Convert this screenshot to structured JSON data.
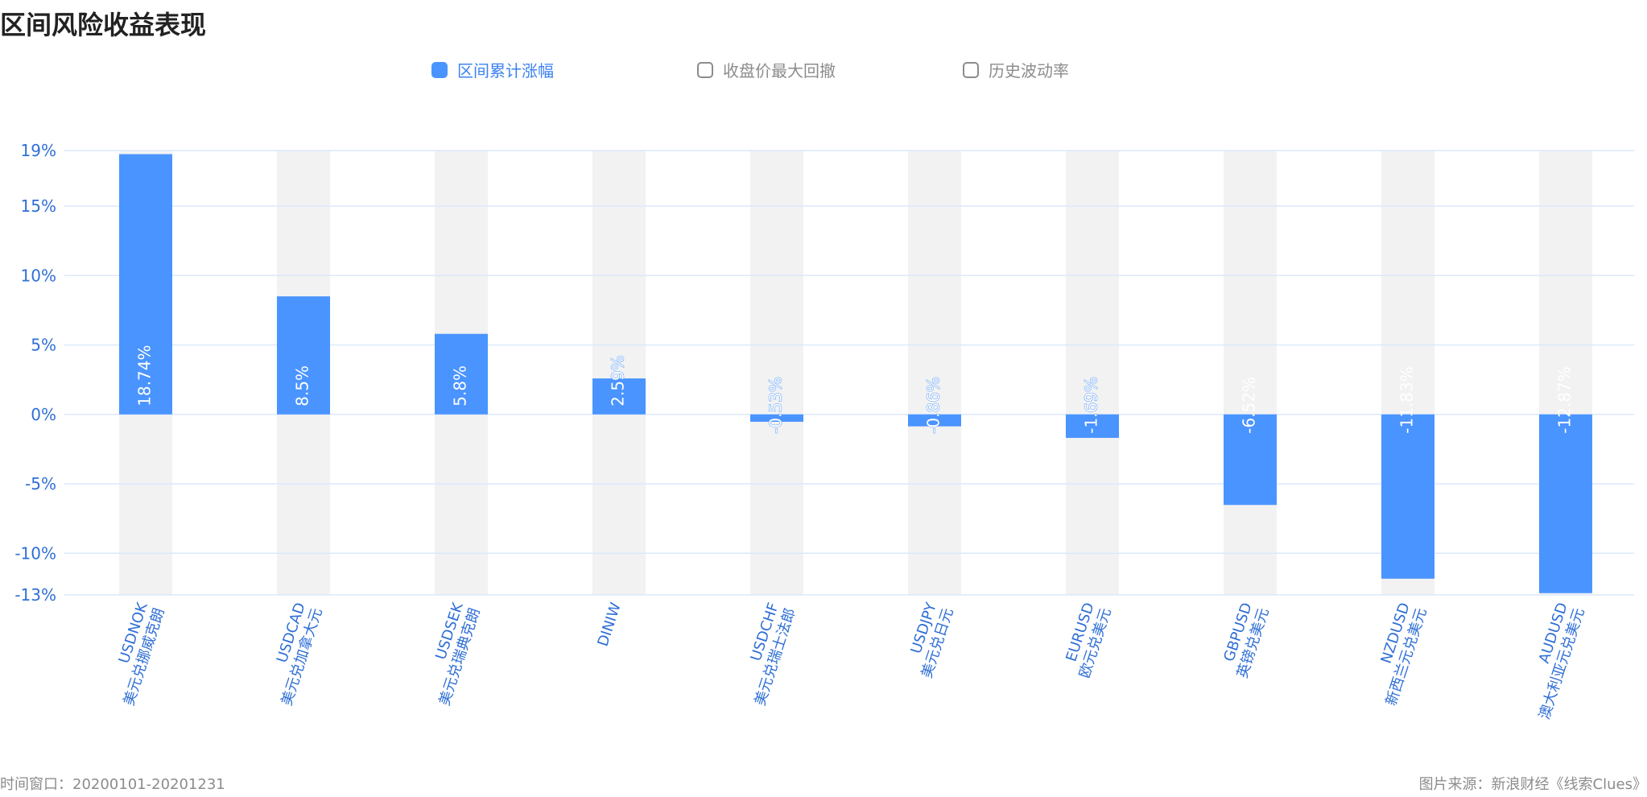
{
  "title": "区间风险收益表现",
  "legend": [
    {
      "label": "区间累计涨幅",
      "active": true
    },
    {
      "label": "收盘价最大回撤",
      "active": false
    },
    {
      "label": "历史波动率",
      "active": false
    }
  ],
  "footer": {
    "left": "时间窗口：20200101-20201231",
    "right": "图片来源：新浪财经《线索Clues》"
  },
  "colors": {
    "bar": "#4a94ff",
    "band": "#f2f2f2",
    "grid": "#dbe9fb",
    "axis_text": "#2f6fd6",
    "label_inside": "#ffffff"
  },
  "chart_data": {
    "type": "bar",
    "title": "区间风险收益表现",
    "series": [
      {
        "name": "区间累计涨幅",
        "values": [
          18.74,
          8.5,
          5.8,
          2.59,
          -0.53,
          -0.86,
          -1.69,
          -6.52,
          -11.83,
          -12.87
        ]
      }
    ],
    "categories": [
      {
        "code": "USDNOK",
        "name": "美元兑挪威克朗"
      },
      {
        "code": "USDCAD",
        "name": "美元兑加拿大元"
      },
      {
        "code": "USDSEK",
        "name": "美元兑瑞典克朗"
      },
      {
        "code": "DINIW",
        "name": ""
      },
      {
        "code": "USDCHF",
        "name": "美元兑瑞士法郎"
      },
      {
        "code": "USDJPY",
        "name": "美元兑日元"
      },
      {
        "code": "EURUSD",
        "name": "欧元兑美元"
      },
      {
        "code": "GBPUSD",
        "name": "英镑兑美元"
      },
      {
        "code": "NZDUSD",
        "name": "新西兰元兑美元"
      },
      {
        "code": "AUDUSD",
        "name": "澳大利亚元兑美元"
      }
    ],
    "data_labels": [
      "18.74%",
      "8.5%",
      "5.8%",
      "2.59%",
      "-0.53%",
      "-0.86%",
      "-1.69%",
      "-6.52%",
      "-11.83%",
      "-12.87%"
    ],
    "yticks": [
      19,
      15,
      10,
      5,
      0,
      -5,
      -10,
      -13
    ],
    "ytick_labels": [
      "19%",
      "15%",
      "10%",
      "5%",
      "0%",
      "-5%",
      "-10%",
      "-13%"
    ],
    "ylim": [
      -13,
      19
    ],
    "xlabel": "",
    "ylabel": "",
    "grid": true
  }
}
